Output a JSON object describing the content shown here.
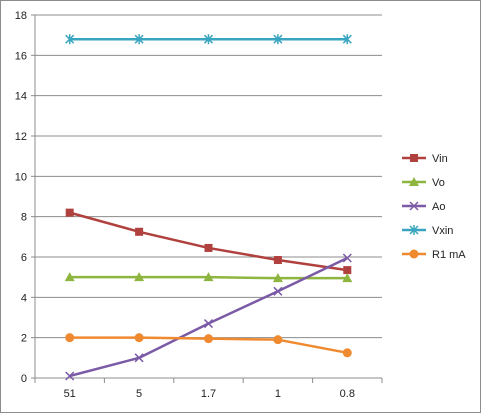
{
  "chart_data": {
    "type": "line",
    "categories": [
      "51",
      "5",
      "1.7",
      "1",
      "0.8"
    ],
    "ylim": [
      0,
      18
    ],
    "yticks": [
      0,
      2,
      4,
      6,
      8,
      10,
      12,
      14,
      16,
      18
    ],
    "grid": true,
    "legend_position": "right",
    "series": [
      {
        "name": "Vin",
        "values": [
          8.2,
          7.25,
          6.45,
          5.85,
          5.35
        ],
        "color": "#b0413e",
        "marker": "square"
      },
      {
        "name": "Vo",
        "values": [
          5.0,
          5.0,
          5.0,
          4.95,
          4.95
        ],
        "color": "#8db53f",
        "marker": "triangle"
      },
      {
        "name": "Ao",
        "values": [
          0.1,
          1.0,
          2.7,
          4.3,
          5.95
        ],
        "color": "#7b5aa6",
        "marker": "x"
      },
      {
        "name": "Vxin",
        "values": [
          16.8,
          16.8,
          16.8,
          16.8,
          16.8
        ],
        "color": "#3aa5c0",
        "marker": "asterisk"
      },
      {
        "name": "R1 mA",
        "values": [
          2.0,
          2.0,
          1.95,
          1.9,
          1.25
        ],
        "color": "#f08a30",
        "marker": "circle"
      }
    ]
  }
}
